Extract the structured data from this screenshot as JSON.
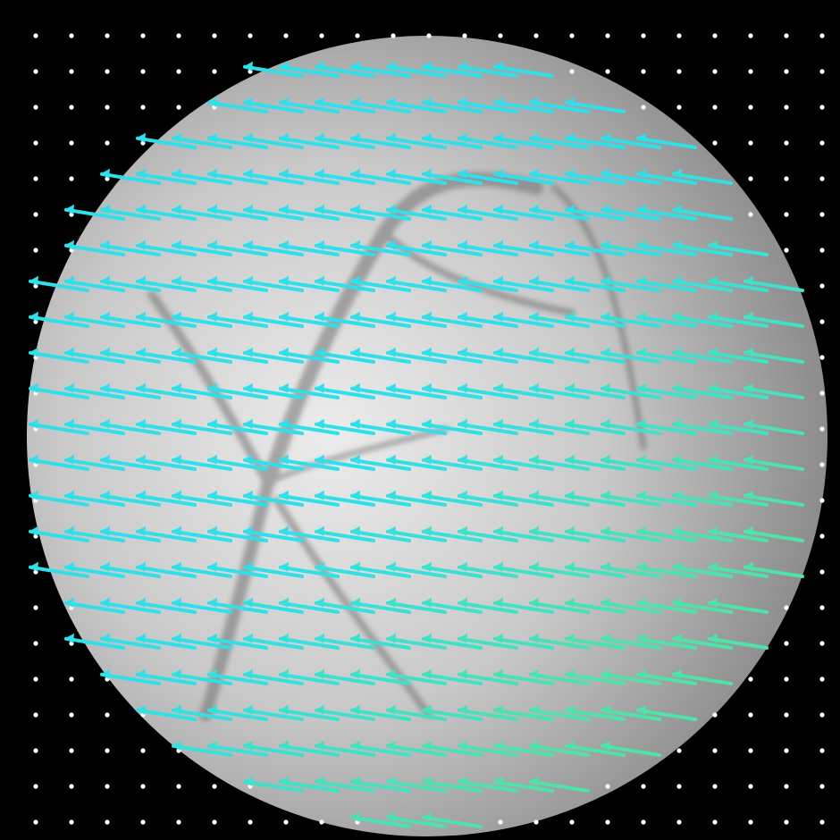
{
  "image": {
    "subject": "fundus-optical-flow",
    "background_color": "#000000",
    "disc_colors": {
      "center": "#e6e6e6",
      "mid": "#c2c2c2",
      "edge": "#8a8a8a"
    },
    "vessel_color": "#6f6f6f"
  },
  "flow_field": {
    "grid_spacing": 40,
    "arrow_direction": "left-slightly-up",
    "colors": {
      "main": "#2fe0ea",
      "lower_right": "#4ee3a8",
      "outside_dots": "#ffffff"
    }
  }
}
